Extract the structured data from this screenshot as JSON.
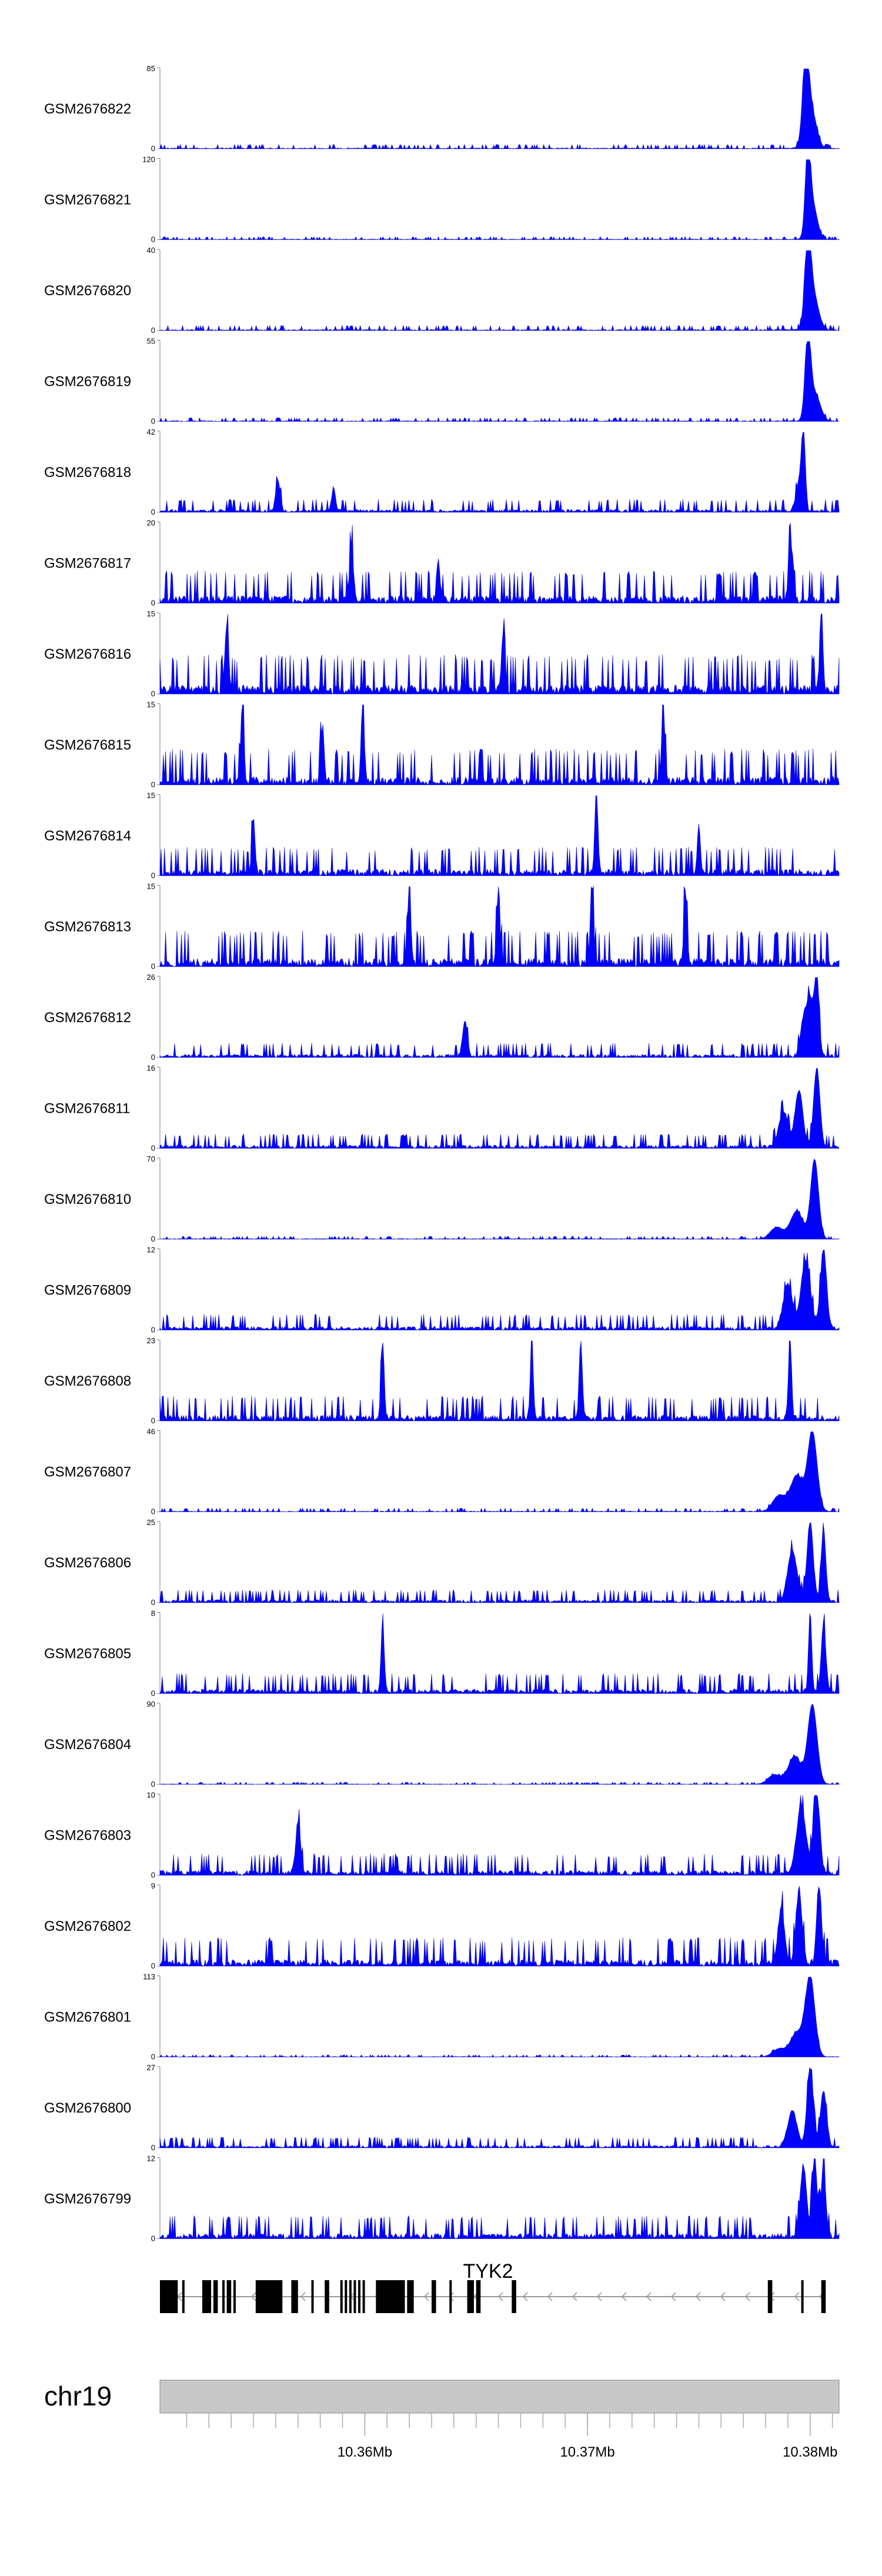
{
  "chart_data": {
    "type": "area",
    "title": "",
    "region": {
      "chromosome": "chr19",
      "start_mb": 10.3508,
      "end_mb": 10.3813
    },
    "tracks": [
      {
        "name": "GSM2676822",
        "ymax": 85,
        "ymin": 0,
        "noise": 0.06,
        "peaks": [
          [
            10.3798,
            1.0,
            0.00018
          ],
          [
            10.38,
            0.55,
            0.00035
          ]
        ]
      },
      {
        "name": "GSM2676821",
        "ymax": 120,
        "ymin": 0,
        "noise": 0.04,
        "peaks": [
          [
            10.3799,
            1.0,
            0.00016
          ],
          [
            10.3801,
            0.45,
            0.0003
          ]
        ]
      },
      {
        "name": "GSM2676820",
        "ymax": 40,
        "ymin": 0,
        "noise": 0.07,
        "peaks": [
          [
            10.3799,
            1.0,
            0.00018
          ],
          [
            10.3801,
            0.5,
            0.00035
          ]
        ]
      },
      {
        "name": "GSM2676819",
        "ymax": 55,
        "ymin": 0,
        "noise": 0.05,
        "peaks": [
          [
            10.3799,
            1.0,
            0.00018
          ],
          [
            10.3802,
            0.35,
            0.00035
          ]
        ]
      },
      {
        "name": "GSM2676818",
        "ymax": 42,
        "ymin": 0,
        "noise": 0.18,
        "peaks": [
          [
            10.3797,
            1.0,
            0.00012
          ],
          [
            10.3795,
            0.35,
            0.0002
          ],
          [
            10.3561,
            0.38,
            0.00015
          ],
          [
            10.3586,
            0.3,
            0.00012
          ]
        ]
      },
      {
        "name": "GSM2676817",
        "ymax": 20,
        "ymin": 0,
        "noise": 0.45,
        "peaks": [
          [
            10.3791,
            1.0,
            0.0001
          ],
          [
            10.3594,
            0.72,
            0.00012
          ],
          [
            10.3633,
            0.55,
            0.0001
          ]
        ]
      },
      {
        "name": "GSM2676816",
        "ymax": 15,
        "ymin": 0,
        "noise": 0.55,
        "peaks": [
          [
            10.3805,
            1.0,
            0.0001
          ],
          [
            10.3538,
            0.8,
            0.00012
          ],
          [
            10.3662,
            0.7,
            0.0001
          ]
        ]
      },
      {
        "name": "GSM2676815",
        "ymax": 15,
        "ymin": 0,
        "noise": 0.5,
        "peaks": [
          [
            10.3545,
            1.0,
            0.0001
          ],
          [
            10.3599,
            1.0,
            0.0001
          ],
          [
            10.3734,
            1.0,
            0.0001
          ],
          [
            10.3581,
            0.7,
            0.0001
          ]
        ]
      },
      {
        "name": "GSM2676814",
        "ymax": 15,
        "ymin": 0,
        "noise": 0.4,
        "peaks": [
          [
            10.3704,
            1.0,
            0.0001
          ],
          [
            10.355,
            0.7,
            0.0001
          ],
          [
            10.375,
            0.6,
            0.0001
          ]
        ]
      },
      {
        "name": "GSM2676813",
        "ymax": 15,
        "ymin": 0,
        "noise": 0.5,
        "peaks": [
          [
            10.366,
            1.0,
            0.0001
          ],
          [
            10.3702,
            1.0,
            0.0001
          ],
          [
            10.3744,
            0.95,
            0.0001
          ],
          [
            10.362,
            0.95,
            0.0001
          ]
        ]
      },
      {
        "name": "GSM2676812",
        "ymax": 26,
        "ymin": 0,
        "noise": 0.2,
        "peaks": [
          [
            10.3803,
            1.0,
            0.00015
          ],
          [
            10.38,
            0.7,
            0.0002
          ],
          [
            10.3645,
            0.45,
            0.00015
          ],
          [
            10.3797,
            0.45,
            0.0002
          ]
        ]
      },
      {
        "name": "GSM2676811",
        "ymax": 16,
        "ymin": 0,
        "noise": 0.2,
        "peaks": [
          [
            10.3803,
            1.0,
            0.0002
          ],
          [
            10.3795,
            0.7,
            0.00025
          ],
          [
            10.3788,
            0.45,
            0.0003
          ]
        ]
      },
      {
        "name": "GSM2676810",
        "ymax": 70,
        "ymin": 0,
        "noise": 0.04,
        "peaks": [
          [
            10.3802,
            1.0,
            0.00025
          ],
          [
            10.3794,
            0.35,
            0.0004
          ],
          [
            10.3785,
            0.15,
            0.0004
          ]
        ]
      },
      {
        "name": "GSM2676809",
        "ymax": 12,
        "ymin": 0,
        "noise": 0.22,
        "peaks": [
          [
            10.3806,
            1.0,
            0.0002
          ],
          [
            10.3798,
            0.85,
            0.0003
          ],
          [
            10.379,
            0.55,
            0.0003
          ]
        ]
      },
      {
        "name": "GSM2676808",
        "ymax": 23,
        "ymin": 0,
        "noise": 0.35,
        "peaks": [
          [
            10.3697,
            1.0,
            0.0001
          ],
          [
            10.3791,
            1.0,
            0.0001
          ],
          [
            10.3608,
            0.95,
            0.0001
          ],
          [
            10.3675,
            0.9,
            0.0001
          ]
        ]
      },
      {
        "name": "GSM2676807",
        "ymax": 46,
        "ymin": 0,
        "noise": 0.05,
        "peaks": [
          [
            10.3801,
            1.0,
            0.0003
          ],
          [
            10.3794,
            0.45,
            0.0004
          ],
          [
            10.3786,
            0.2,
            0.0004
          ]
        ]
      },
      {
        "name": "GSM2676806",
        "ymax": 25,
        "ymin": 0,
        "noise": 0.18,
        "peaks": [
          [
            10.38,
            1.0,
            0.0002
          ],
          [
            10.3806,
            0.9,
            0.00015
          ],
          [
            10.3792,
            0.65,
            0.0003
          ]
        ]
      },
      {
        "name": "GSM2676805",
        "ymax": 8,
        "ymin": 0,
        "noise": 0.28,
        "peaks": [
          [
            10.38,
            1.0,
            0.0001
          ],
          [
            10.3806,
            0.85,
            0.00015
          ],
          [
            10.3608,
            0.85,
            0.0001
          ]
        ]
      },
      {
        "name": "GSM2676804",
        "ymax": 90,
        "ymin": 0,
        "noise": 0.03,
        "peaks": [
          [
            10.3801,
            1.0,
            0.0003
          ],
          [
            10.3793,
            0.35,
            0.0004
          ],
          [
            10.3784,
            0.12,
            0.0004
          ]
        ]
      },
      {
        "name": "GSM2676803",
        "ymax": 10,
        "ymin": 0,
        "noise": 0.3,
        "peaks": [
          [
            10.3803,
            1.0,
            0.0002
          ],
          [
            10.3796,
            0.85,
            0.0003
          ],
          [
            10.357,
            0.65,
            0.00015
          ]
        ]
      },
      {
        "name": "GSM2676802",
        "ymax": 9,
        "ymin": 0,
        "noise": 0.4,
        "peaks": [
          [
            10.3804,
            1.0,
            0.00015
          ],
          [
            10.3795,
            0.9,
            0.0002
          ],
          [
            10.3787,
            0.7,
            0.0002
          ]
        ]
      },
      {
        "name": "GSM2676801",
        "ymax": 113,
        "ymin": 0,
        "noise": 0.03,
        "peaks": [
          [
            10.38,
            1.0,
            0.0003
          ],
          [
            10.3794,
            0.3,
            0.0004
          ],
          [
            10.3786,
            0.1,
            0.0004
          ]
        ]
      },
      {
        "name": "GSM2676800",
        "ymax": 27,
        "ymin": 0,
        "noise": 0.15,
        "peaks": [
          [
            10.38,
            1.0,
            0.0002
          ],
          [
            10.3806,
            0.7,
            0.0002
          ],
          [
            10.3792,
            0.45,
            0.0003
          ]
        ]
      },
      {
        "name": "GSM2676799",
        "ymax": 12,
        "ymin": 0,
        "noise": 0.32,
        "peaks": [
          [
            10.3802,
            1.0,
            0.00015
          ],
          [
            10.3797,
            0.9,
            0.0002
          ],
          [
            10.3806,
            0.85,
            0.00015
          ]
        ]
      }
    ],
    "gene": {
      "name": "TYK2",
      "strand": "-",
      "span_mb": [
        10.3508,
        10.3807
      ],
      "exons_mb": [
        [
          10.3508,
          10.3516
        ],
        [
          10.3518,
          10.3519
        ],
        [
          10.3527,
          10.3531
        ],
        [
          10.3532,
          10.3534
        ],
        [
          10.3536,
          10.3537
        ],
        [
          10.3538,
          10.354
        ],
        [
          10.3541,
          10.3542
        ],
        [
          10.3551,
          10.3563
        ],
        [
          10.3567,
          10.357
        ],
        [
          10.3576,
          10.3577
        ],
        [
          10.3582,
          10.3584
        ],
        [
          10.3589,
          10.359
        ],
        [
          10.3591,
          10.3592
        ],
        [
          10.3593,
          10.3594
        ],
        [
          10.3595,
          10.3596
        ],
        [
          10.3597,
          10.3598
        ],
        [
          10.3599,
          10.36
        ],
        [
          10.3605,
          10.3618
        ],
        [
          10.3619,
          10.3622
        ],
        [
          10.363,
          10.3632
        ],
        [
          10.3638,
          10.3639
        ],
        [
          10.3646,
          10.3649
        ],
        [
          10.365,
          10.3652
        ],
        [
          10.3666,
          10.3668
        ],
        [
          10.3781,
          10.3783
        ],
        [
          10.3796,
          10.3797
        ],
        [
          10.3805,
          10.3807
        ]
      ]
    },
    "axis": {
      "chromosome_label": "chr19",
      "ticks_mb": [
        10.352,
        10.353,
        10.354,
        10.355,
        10.356,
        10.357,
        10.358,
        10.359,
        10.36,
        10.361,
        10.362,
        10.363,
        10.364,
        10.365,
        10.366,
        10.367,
        10.368,
        10.369,
        10.37,
        10.371,
        10.372,
        10.373,
        10.374,
        10.375,
        10.376,
        10.377,
        10.378,
        10.379,
        10.38,
        10.381
      ],
      "labeled_ticks": [
        {
          "mb": 10.36,
          "label": "10.36Mb"
        },
        {
          "mb": 10.37,
          "label": "10.37Mb"
        },
        {
          "mb": 10.38,
          "label": "10.38Mb"
        }
      ]
    },
    "colors": {
      "fill": "#0000ff",
      "stroke": "#0000cc",
      "exon": "#000000",
      "ideogram": "#c8c8c8"
    }
  }
}
